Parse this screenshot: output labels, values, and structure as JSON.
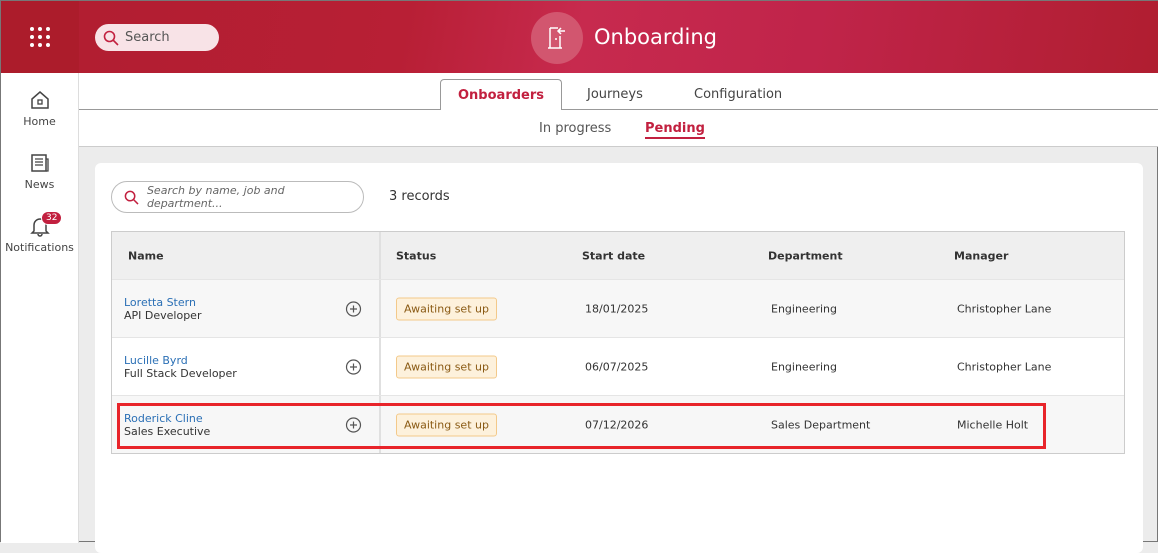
{
  "header": {
    "search_label": "Search",
    "app_title": "Onboarding"
  },
  "sidebar": {
    "items": [
      {
        "label": "Home"
      },
      {
        "label": "News"
      },
      {
        "label": "Notifications",
        "badge": "32"
      }
    ]
  },
  "tabs": [
    {
      "label": "Onboarders",
      "active": true
    },
    {
      "label": "Journeys"
    },
    {
      "label": "Configuration"
    }
  ],
  "subtabs": [
    {
      "label": "In progress"
    },
    {
      "label": "Pending",
      "active": true
    }
  ],
  "table_search": {
    "placeholder": "Search by name, job and department..."
  },
  "records": "3 records",
  "columns": [
    "Name",
    "Status",
    "Start date",
    "Department",
    "Manager"
  ],
  "rows": [
    {
      "name": "Loretta Stern",
      "job": "API Developer",
      "status": "Awaiting set up",
      "start": "18/01/2025",
      "dept": "Engineering",
      "manager": "Christopher Lane"
    },
    {
      "name": "Lucille Byrd",
      "job": "Full Stack Developer",
      "status": "Awaiting set up",
      "start": "06/07/2025",
      "dept": "Engineering",
      "manager": "Christopher Lane"
    },
    {
      "name": "Roderick Cline",
      "job": "Sales Executive",
      "status": "Awaiting set up",
      "start": "07/12/2026",
      "dept": "Sales Department",
      "manager": "Michelle Holt",
      "highlighted": true
    }
  ],
  "colors": {
    "brand": "#b01e30",
    "accent": "#c2203f",
    "highlight": "#e8242a"
  }
}
